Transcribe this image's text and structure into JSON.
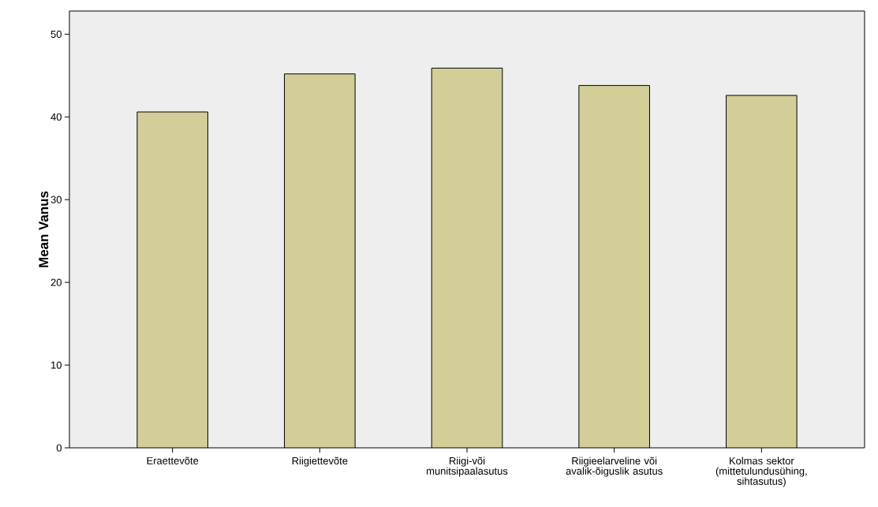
{
  "chart_data": {
    "type": "bar",
    "ylabel": "Mean Vanus",
    "categories": [
      "Eraettevõte",
      "Riigiettevõte",
      "Riigi-või munitsipaalasutus",
      "Riigieelarveline või avalik-õiguslik asutus",
      "Kolmas sektor (mittetulundusühing, sihtasutus)"
    ],
    "values": [
      40.6,
      45.2,
      45.9,
      43.8,
      42.6
    ],
    "color": "#d3ce98",
    "ylim": [
      0,
      52.8
    ],
    "yticks": [
      0,
      10,
      20,
      30,
      40,
      50
    ]
  }
}
